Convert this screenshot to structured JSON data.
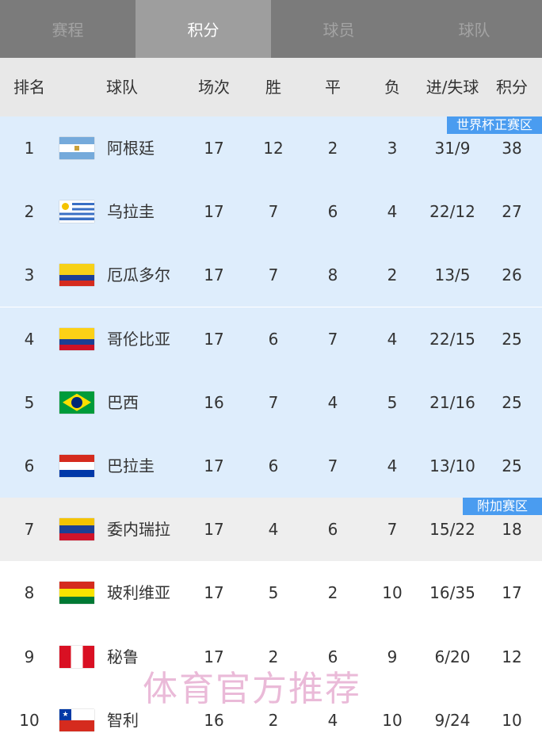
{
  "tabs": [
    "赛程",
    "积分",
    "球员",
    "球队"
  ],
  "active_tab": 1,
  "headers": {
    "rank": "排名",
    "team": "球队",
    "played": "场次",
    "win": "胜",
    "draw": "平",
    "loss": "负",
    "goals": "进/失球",
    "points": "积分"
  },
  "zones": {
    "world_cup": "世界杯正赛区",
    "playoff": "附加赛区"
  },
  "colors": {
    "qualify_bg": "#deedfc",
    "playoff_bg": "#eeeeee",
    "zone_badge": "#4a9cf0"
  },
  "rows": [
    {
      "rank": "1",
      "team": "阿根廷",
      "flag": "argentina",
      "played": "17",
      "win": "12",
      "draw": "2",
      "loss": "3",
      "goals": "31/9",
      "points": "38"
    },
    {
      "rank": "2",
      "team": "乌拉圭",
      "flag": "uruguay",
      "played": "17",
      "win": "7",
      "draw": "6",
      "loss": "4",
      "goals": "22/12",
      "points": "27"
    },
    {
      "rank": "3",
      "team": "厄瓜多尔",
      "flag": "ecuador",
      "played": "17",
      "win": "7",
      "draw": "8",
      "loss": "2",
      "goals": "13/5",
      "points": "26"
    },
    {
      "rank": "4",
      "team": "哥伦比亚",
      "flag": "colombia",
      "played": "17",
      "win": "6",
      "draw": "7",
      "loss": "4",
      "goals": "22/15",
      "points": "25"
    },
    {
      "rank": "5",
      "team": "巴西",
      "flag": "brazil",
      "played": "16",
      "win": "7",
      "draw": "4",
      "loss": "5",
      "goals": "21/16",
      "points": "25"
    },
    {
      "rank": "6",
      "team": "巴拉圭",
      "flag": "paraguay",
      "played": "17",
      "win": "6",
      "draw": "7",
      "loss": "4",
      "goals": "13/10",
      "points": "25"
    },
    {
      "rank": "7",
      "team": "委内瑞拉",
      "flag": "venezuela",
      "played": "17",
      "win": "4",
      "draw": "6",
      "loss": "7",
      "goals": "15/22",
      "points": "18"
    },
    {
      "rank": "8",
      "team": "玻利维亚",
      "flag": "bolivia",
      "played": "17",
      "win": "5",
      "draw": "2",
      "loss": "10",
      "goals": "16/35",
      "points": "17"
    },
    {
      "rank": "9",
      "team": "秘鲁",
      "flag": "peru",
      "played": "17",
      "win": "2",
      "draw": "6",
      "loss": "9",
      "goals": "6/20",
      "points": "12"
    },
    {
      "rank": "10",
      "team": "智利",
      "flag": "chile",
      "played": "16",
      "win": "2",
      "draw": "4",
      "loss": "10",
      "goals": "9/24",
      "points": "10"
    }
  ],
  "watermark": "体育官方推荐"
}
